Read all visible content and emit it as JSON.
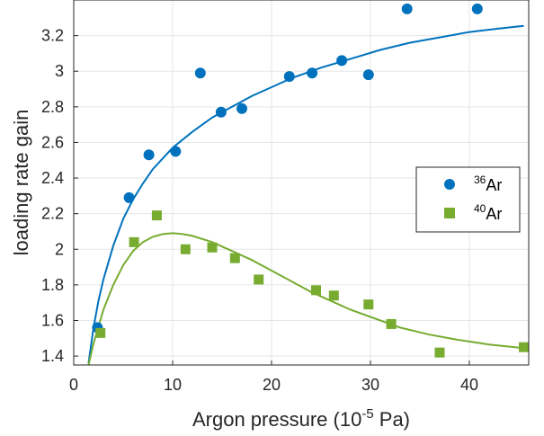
{
  "chart_data": {
    "type": "scatter",
    "xlabel_base": "Argon pressure (10",
    "xlabel_exp": "-5",
    "xlabel_unit": " Pa)",
    "ylabel": "loading rate gain",
    "xlim": [
      0,
      46
    ],
    "ylim": [
      1.35,
      3.4
    ],
    "x_ticks": [
      0,
      10,
      20,
      30,
      40
    ],
    "y_ticks": [
      1.4,
      1.6,
      1.8,
      2.0,
      2.2,
      2.4,
      2.6,
      2.8,
      3.0,
      3.2
    ],
    "y_tick_labels": [
      "1.4",
      "1.6",
      "1.8",
      "2",
      "2.2",
      "2.4",
      "2.6",
      "2.8",
      "3",
      "3.2"
    ],
    "grid": true,
    "legend_position": "right",
    "series": [
      {
        "name_sup": "36",
        "name_base": "Ar",
        "marker": "circle",
        "color": "#0072BD",
        "points": [
          [
            2.4,
            1.56
          ],
          [
            5.6,
            2.29
          ],
          [
            7.6,
            2.53
          ],
          [
            10.3,
            2.55
          ],
          [
            12.8,
            2.99
          ],
          [
            14.9,
            2.77
          ],
          [
            17.0,
            2.79
          ],
          [
            21.8,
            2.97
          ],
          [
            24.1,
            2.99
          ],
          [
            27.1,
            3.06
          ],
          [
            29.8,
            2.98
          ],
          [
            33.7,
            3.35
          ],
          [
            40.8,
            3.35
          ]
        ],
        "fit": [
          [
            1.5,
            1.36
          ],
          [
            2.0,
            1.56
          ],
          [
            2.5,
            1.71
          ],
          [
            3.0,
            1.83
          ],
          [
            4.0,
            2.02
          ],
          [
            5.0,
            2.17
          ],
          [
            6.0,
            2.28
          ],
          [
            7.0,
            2.37
          ],
          [
            8.0,
            2.45
          ],
          [
            10.0,
            2.57
          ],
          [
            12.0,
            2.66
          ],
          [
            14.0,
            2.74
          ],
          [
            16.0,
            2.8
          ],
          [
            18.0,
            2.86
          ],
          [
            20.0,
            2.91
          ],
          [
            22.0,
            2.96
          ],
          [
            25.0,
            3.02
          ],
          [
            28.0,
            3.07
          ],
          [
            31.0,
            3.12
          ],
          [
            34.0,
            3.16
          ],
          [
            37.0,
            3.19
          ],
          [
            40.0,
            3.22
          ],
          [
            43.0,
            3.24
          ],
          [
            45.5,
            3.255
          ]
        ]
      },
      {
        "name_sup": "40",
        "name_base": "Ar",
        "marker": "square",
        "color": "#77AC30",
        "points": [
          [
            2.7,
            1.53
          ],
          [
            6.1,
            2.04
          ],
          [
            8.4,
            2.19
          ],
          [
            11.3,
            2.0
          ],
          [
            14.0,
            2.01
          ],
          [
            16.3,
            1.95
          ],
          [
            18.7,
            1.83
          ],
          [
            24.5,
            1.77
          ],
          [
            26.3,
            1.74
          ],
          [
            29.8,
            1.69
          ],
          [
            32.1,
            1.58
          ],
          [
            37.0,
            1.42
          ],
          [
            45.5,
            1.45
          ]
        ],
        "fit": [
          [
            1.5,
            1.35
          ],
          [
            2.0,
            1.47
          ],
          [
            3.0,
            1.66
          ],
          [
            4.0,
            1.8
          ],
          [
            5.0,
            1.91
          ],
          [
            6.0,
            1.99
          ],
          [
            7.0,
            2.04
          ],
          [
            8.0,
            2.07
          ],
          [
            9.0,
            2.085
          ],
          [
            10.0,
            2.09
          ],
          [
            11.0,
            2.085
          ],
          [
            12.0,
            2.075
          ],
          [
            14.0,
            2.04
          ],
          [
            16.0,
            1.99
          ],
          [
            18.0,
            1.94
          ],
          [
            20.0,
            1.88
          ],
          [
            22.0,
            1.82
          ],
          [
            24.0,
            1.76
          ],
          [
            26.0,
            1.71
          ],
          [
            28.0,
            1.66
          ],
          [
            30.0,
            1.62
          ],
          [
            33.0,
            1.56
          ],
          [
            36.0,
            1.52
          ],
          [
            39.0,
            1.49
          ],
          [
            42.0,
            1.465
          ],
          [
            45.5,
            1.445
          ]
        ]
      }
    ]
  }
}
